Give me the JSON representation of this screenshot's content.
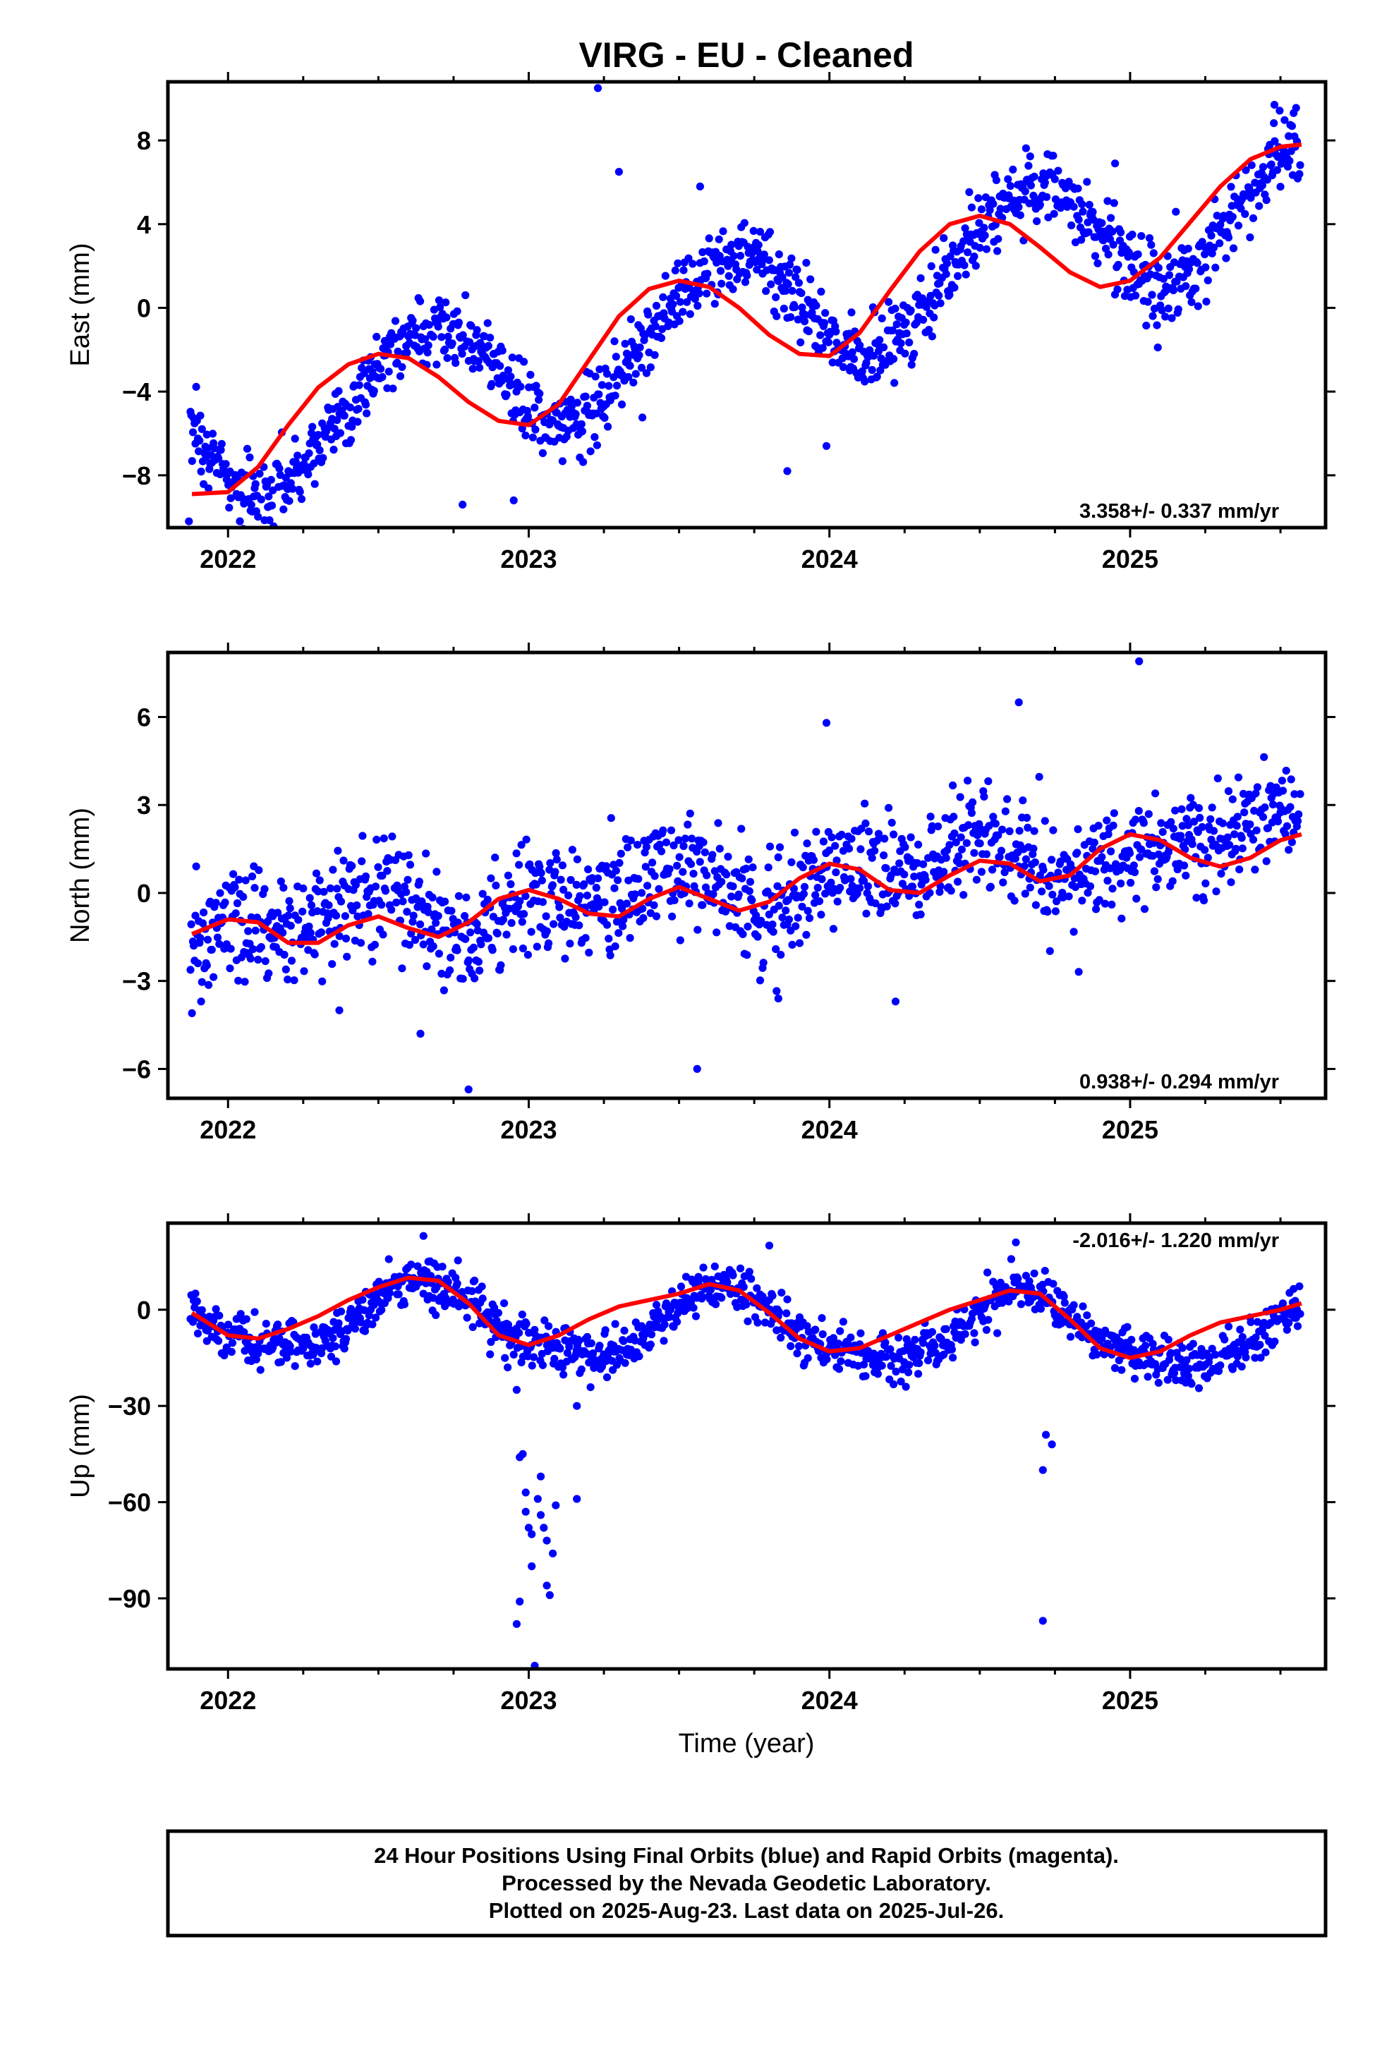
{
  "figure": {
    "title": "VIRG  - EU - Cleaned",
    "xlabel": "Time (year)",
    "footer": [
      "24 Hour Positions Using Final Orbits (blue) and Rapid Orbits (magenta).",
      "Processed by the Nevada Geodetic Laboratory.",
      "Plotted on 2025-Aug-23. Last data on 2025-Jul-26."
    ]
  },
  "colors": {
    "data_points": "#0000ff",
    "model_fit": "#ff0000",
    "frame": "#000000"
  },
  "chart_data": [
    {
      "type": "scatter",
      "component": "east",
      "ylabel": "East (mm)",
      "rate_text": "3.358+/- 0.337 mm/yr",
      "xlim": [
        2021.8,
        2025.65
      ],
      "ylim": [
        -10.5,
        10.8
      ],
      "x_ticks": [
        2022,
        2023,
        2024,
        2025
      ],
      "y_ticks": [
        -8,
        -4,
        0,
        4,
        8
      ],
      "series": [
        {
          "role": "daily_positions",
          "color": "#0000ff",
          "model": {
            "offset": -6.2,
            "rate": 3.358,
            "amp1": 3.0,
            "phase1": 0.4,
            "amp2": 0.25,
            "phase2": 0.2,
            "t0": 2022.0
          },
          "noise": 0.9
        },
        {
          "role": "model_fit",
          "color": "#ff0000",
          "x": [
            2021.88,
            2022.0,
            2022.1,
            2022.2,
            2022.3,
            2022.4,
            2022.5,
            2022.6,
            2022.7,
            2022.8,
            2022.9,
            2023.0,
            2023.1,
            2023.2,
            2023.3,
            2023.4,
            2023.5,
            2023.6,
            2023.7,
            2023.8,
            2023.9,
            2024.0,
            2024.1,
            2024.2,
            2024.3,
            2024.4,
            2024.5,
            2024.6,
            2024.7,
            2024.8,
            2024.9,
            2025.0,
            2025.1,
            2025.2,
            2025.3,
            2025.4,
            2025.5,
            2025.57
          ],
          "y": [
            -8.9,
            -8.8,
            -7.6,
            -5.6,
            -3.8,
            -2.7,
            -2.2,
            -2.4,
            -3.3,
            -4.5,
            -5.4,
            -5.6,
            -4.6,
            -2.5,
            -0.4,
            0.9,
            1.3,
            1.0,
            0.0,
            -1.3,
            -2.2,
            -2.3,
            -1.2,
            0.8,
            2.7,
            4.0,
            4.4,
            4.0,
            2.9,
            1.7,
            1.0,
            1.3,
            2.4,
            4.1,
            5.8,
            7.1,
            7.7,
            7.8
          ]
        }
      ],
      "outliers": [
        [
          2023.23,
          10.5
        ],
        [
          2023.3,
          6.5
        ],
        [
          2023.57,
          5.8
        ],
        [
          2024.95,
          6.9
        ],
        [
          2025.48,
          9.7
        ],
        [
          2023.86,
          -7.8
        ],
        [
          2023.99,
          -6.6
        ],
        [
          2022.78,
          -9.4
        ],
        [
          2022.95,
          -9.2
        ],
        [
          2021.87,
          -10.2
        ]
      ]
    },
    {
      "type": "scatter",
      "component": "north",
      "ylabel": "North (mm)",
      "rate_text": "0.938+/- 0.294 mm/yr",
      "xlim": [
        2021.8,
        2025.65
      ],
      "ylim": [
        -7.0,
        8.2
      ],
      "x_ticks": [
        2022,
        2023,
        2024,
        2025
      ],
      "y_ticks": [
        -6,
        -3,
        0,
        3,
        6
      ],
      "series": [
        {
          "role": "daily_positions",
          "color": "#0000ff",
          "model": {
            "offset": -1.3,
            "rate": 0.938,
            "amp1": 0.55,
            "phase1": 0.1,
            "amp2": 0.45,
            "phase2": 0.9,
            "t0": 2022.0
          },
          "noise": 0.95
        },
        {
          "role": "model_fit",
          "color": "#ff0000",
          "x": [
            2021.88,
            2022.0,
            2022.1,
            2022.2,
            2022.3,
            2022.4,
            2022.5,
            2022.6,
            2022.7,
            2022.8,
            2022.9,
            2023.0,
            2023.1,
            2023.2,
            2023.3,
            2023.4,
            2023.5,
            2023.6,
            2023.7,
            2023.8,
            2023.9,
            2024.0,
            2024.1,
            2024.2,
            2024.3,
            2024.4,
            2024.5,
            2024.6,
            2024.7,
            2024.8,
            2024.9,
            2025.0,
            2025.1,
            2025.2,
            2025.3,
            2025.4,
            2025.5,
            2025.57
          ],
          "y": [
            -1.4,
            -0.9,
            -1.0,
            -1.7,
            -1.7,
            -1.1,
            -0.8,
            -1.2,
            -1.5,
            -1.0,
            -0.2,
            0.1,
            -0.2,
            -0.7,
            -0.8,
            -0.2,
            0.2,
            -0.2,
            -0.6,
            -0.3,
            0.5,
            1.0,
            0.8,
            0.1,
            0.0,
            0.6,
            1.1,
            1.0,
            0.4,
            0.6,
            1.5,
            2.0,
            1.8,
            1.2,
            0.9,
            1.2,
            1.8,
            2.0
          ]
        }
      ],
      "outliers": [
        [
          2022.8,
          -6.7
        ],
        [
          2023.56,
          -6.0
        ],
        [
          2025.03,
          7.9
        ],
        [
          2024.63,
          6.5
        ],
        [
          2023.99,
          5.8
        ],
        [
          2023.83,
          -3.6
        ],
        [
          2024.22,
          -3.7
        ],
        [
          2022.64,
          -4.8
        ],
        [
          2021.88,
          -4.1
        ],
        [
          2022.37,
          -4.0
        ]
      ]
    },
    {
      "type": "scatter",
      "component": "up",
      "ylabel": "Up (mm)",
      "rate_text": "-2.016+/- 1.220 mm/yr",
      "xlim": [
        2021.8,
        2025.65
      ],
      "ylim": [
        -112,
        27
      ],
      "x_ticks": [
        2022,
        2023,
        2024,
        2025
      ],
      "y_ticks": [
        -90,
        -60,
        -30,
        0
      ],
      "series": [
        {
          "role": "daily_positions",
          "color": "#0000ff",
          "model": {
            "offset": -1.5,
            "rate": -2.016,
            "amp1": 10.5,
            "phase1": 0.4,
            "amp2": 2.0,
            "phase2": 0.5,
            "t0": 2022.0
          },
          "noise": 3.6
        },
        {
          "role": "model_fit",
          "color": "#ff0000",
          "x": [
            2021.88,
            2022.0,
            2022.1,
            2022.2,
            2022.3,
            2022.4,
            2022.5,
            2022.6,
            2022.7,
            2022.8,
            2022.9,
            2023.0,
            2023.1,
            2023.2,
            2023.3,
            2023.4,
            2023.5,
            2023.6,
            2023.7,
            2023.8,
            2023.9,
            2024.0,
            2024.1,
            2024.2,
            2024.3,
            2024.4,
            2024.5,
            2024.6,
            2024.7,
            2024.8,
            2024.9,
            2025.0,
            2025.1,
            2025.2,
            2025.3,
            2025.4,
            2025.5,
            2025.57
          ],
          "y": [
            -1,
            -8,
            -9,
            -6,
            -2,
            3,
            7,
            10,
            9,
            2,
            -8,
            -11,
            -8,
            -3,
            1,
            3,
            5,
            8,
            6,
            -1,
            -9,
            -13,
            -12,
            -8,
            -4,
            0,
            3,
            6,
            5,
            -3,
            -12,
            -15,
            -13,
            -8,
            -4,
            -2,
            0,
            2
          ]
        }
      ],
      "outliers": [
        [
          2022.96,
          -98
        ],
        [
          2022.97,
          -91
        ],
        [
          2022.97,
          -46
        ],
        [
          2022.98,
          -45
        ],
        [
          2022.99,
          -57
        ],
        [
          2022.99,
          -63
        ],
        [
          2023.0,
          -68
        ],
        [
          2023.01,
          -80
        ],
        [
          2023.01,
          -70
        ],
        [
          2023.02,
          -111
        ],
        [
          2023.03,
          -59
        ],
        [
          2023.04,
          -52
        ],
        [
          2023.04,
          -64
        ],
        [
          2023.05,
          -68
        ],
        [
          2023.06,
          -72
        ],
        [
          2023.06,
          -86
        ],
        [
          2023.07,
          -89
        ],
        [
          2023.08,
          -76
        ],
        [
          2023.09,
          -61
        ],
        [
          2022.96,
          -25
        ],
        [
          2022.95,
          -14
        ],
        [
          2022.93,
          -18
        ],
        [
          2023.16,
          -30
        ],
        [
          2023.16,
          -59
        ],
        [
          2024.71,
          -50
        ],
        [
          2024.71,
          -97
        ],
        [
          2024.72,
          -39
        ],
        [
          2024.74,
          -42
        ],
        [
          2022.65,
          23
        ],
        [
          2023.8,
          20
        ],
        [
          2024.62,
          21
        ]
      ]
    }
  ]
}
